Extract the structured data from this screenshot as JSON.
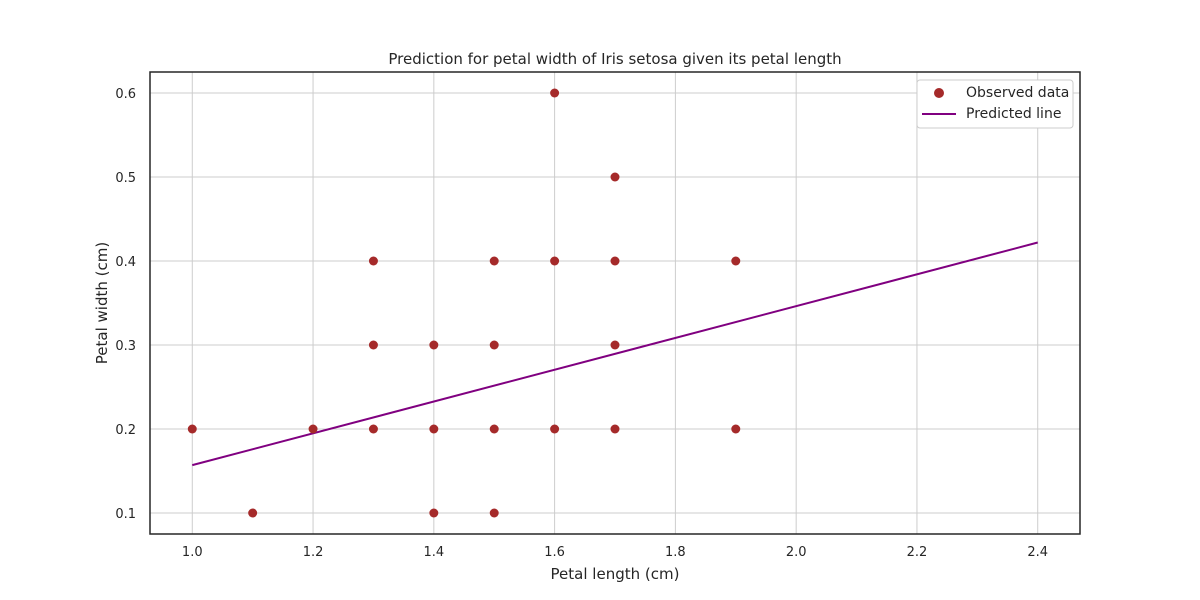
{
  "chart_data": {
    "type": "scatter",
    "title": "Prediction for petal width of Iris setosa given its petal length",
    "xlabel": "Petal length (cm)",
    "ylabel": "Petal width (cm)",
    "xlim": [
      0.93,
      2.47
    ],
    "ylim": [
      0.075,
      0.625
    ],
    "x_ticks": [
      1.0,
      1.2,
      1.4,
      1.6,
      1.8,
      2.0,
      2.2,
      2.4
    ],
    "x_tick_labels": [
      "1.0",
      "1.2",
      "1.4",
      "1.6",
      "1.8",
      "2.0",
      "2.2",
      "2.4"
    ],
    "y_ticks": [
      0.1,
      0.2,
      0.3,
      0.4,
      0.5,
      0.6
    ],
    "y_tick_labels": [
      "0.1",
      "0.2",
      "0.3",
      "0.4",
      "0.5",
      "0.6"
    ],
    "grid": true,
    "legend_position": "top-right",
    "series": [
      {
        "name": "Observed data",
        "kind": "scatter",
        "color": "#a52a2a",
        "points": [
          [
            1.0,
            0.2
          ],
          [
            1.1,
            0.1
          ],
          [
            1.2,
            0.2
          ],
          [
            1.3,
            0.2
          ],
          [
            1.3,
            0.3
          ],
          [
            1.3,
            0.4
          ],
          [
            1.4,
            0.1
          ],
          [
            1.4,
            0.2
          ],
          [
            1.4,
            0.3
          ],
          [
            1.5,
            0.1
          ],
          [
            1.5,
            0.2
          ],
          [
            1.5,
            0.3
          ],
          [
            1.5,
            0.4
          ],
          [
            1.6,
            0.2
          ],
          [
            1.6,
            0.4
          ],
          [
            1.6,
            0.6
          ],
          [
            1.7,
            0.2
          ],
          [
            1.7,
            0.3
          ],
          [
            1.7,
            0.4
          ],
          [
            1.7,
            0.5
          ],
          [
            1.9,
            0.2
          ],
          [
            1.9,
            0.4
          ]
        ]
      },
      {
        "name": "Predicted line",
        "kind": "line",
        "color": "#800080",
        "points": [
          [
            1.0,
            0.157
          ],
          [
            2.4,
            0.422
          ]
        ]
      }
    ]
  }
}
